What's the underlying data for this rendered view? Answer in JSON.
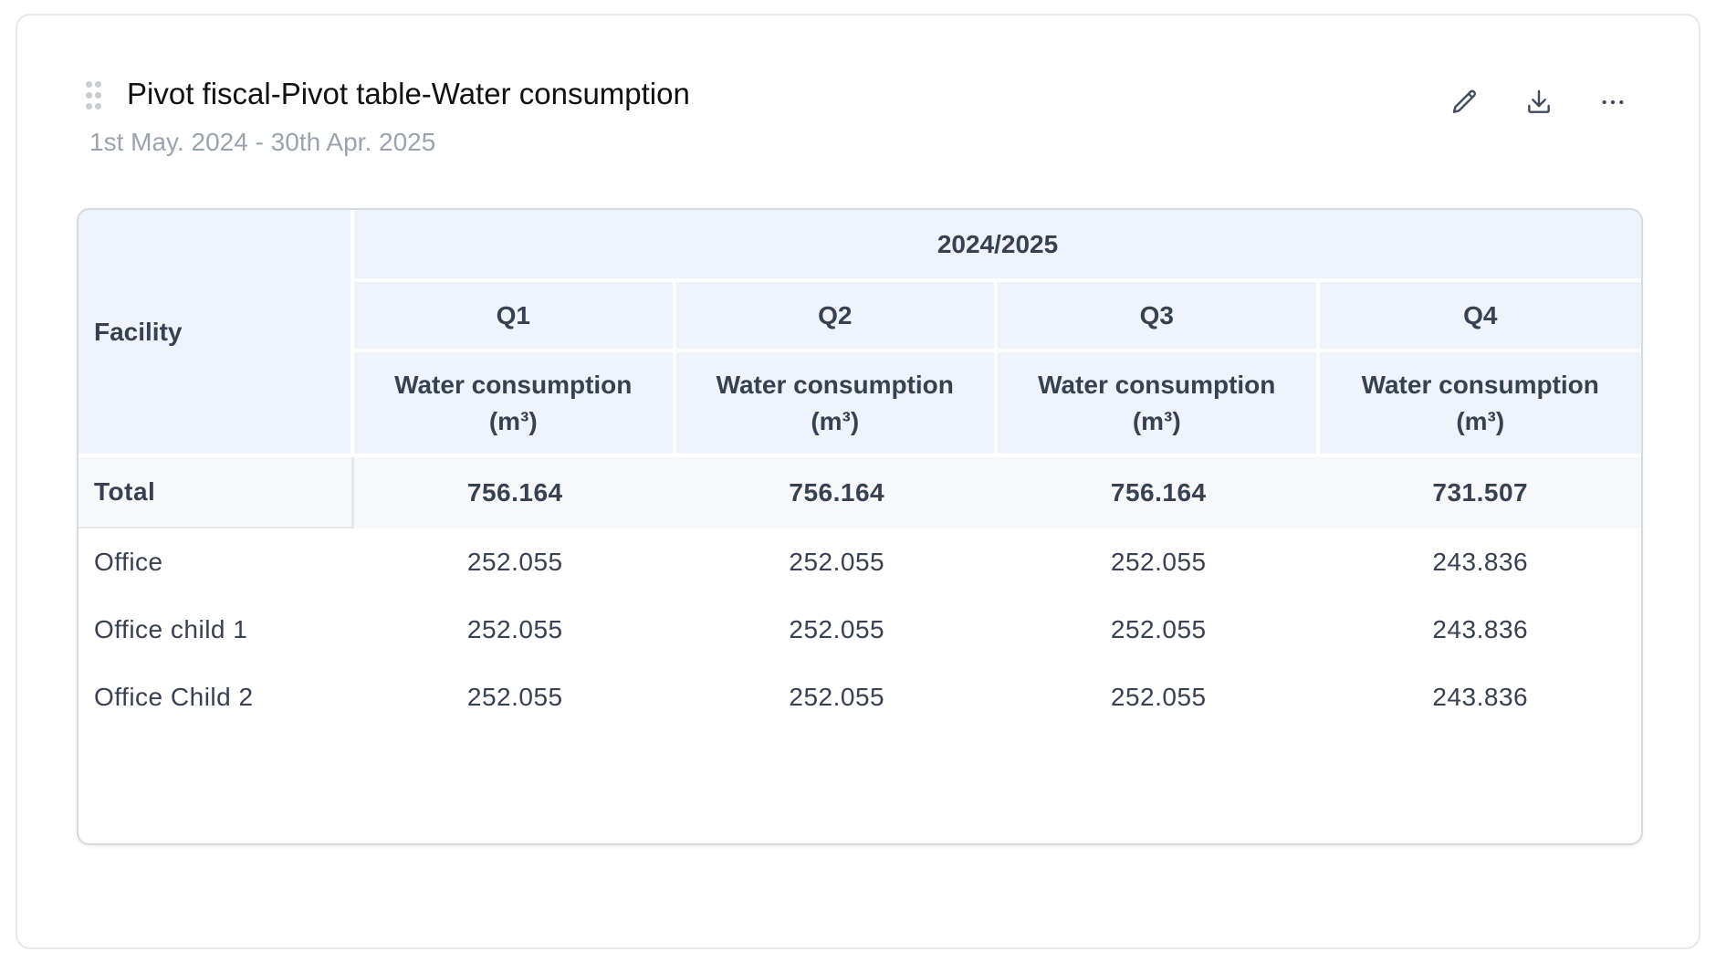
{
  "widget": {
    "title": "Pivot fiscal-Pivot table-Water consumption",
    "date_range": "1st May. 2024 - 30th Apr. 2025",
    "icons": [
      "drag-handle-icon",
      "pencil-icon",
      "download-icon",
      "more-horizontal-icon"
    ]
  },
  "table": {
    "row_header": "Facility",
    "year": "2024/2025",
    "quarters": [
      "Q1",
      "Q2",
      "Q3",
      "Q4"
    ],
    "measure": [
      "Water consumption (m³)",
      "Water consumption (m³)",
      "Water consumption (m³)",
      "Water consumption (m³)"
    ],
    "rows": [
      {
        "label": "Total",
        "values": [
          "756.164",
          "756.164",
          "756.164",
          "731.507"
        ]
      },
      {
        "label": "Office",
        "values": [
          "252.055",
          "252.055",
          "252.055",
          "243.836"
        ]
      },
      {
        "label": "Office child 1",
        "values": [
          "252.055",
          "252.055",
          "252.055",
          "243.836"
        ]
      },
      {
        "label": "Office Child 2",
        "values": [
          "252.055",
          "252.055",
          "252.055",
          "243.836"
        ]
      }
    ]
  },
  "colors": {
    "header_bg": "#eff4fc",
    "total_bg": "#f7f8fa",
    "text": "#374151",
    "muted": "#9ca3af"
  }
}
